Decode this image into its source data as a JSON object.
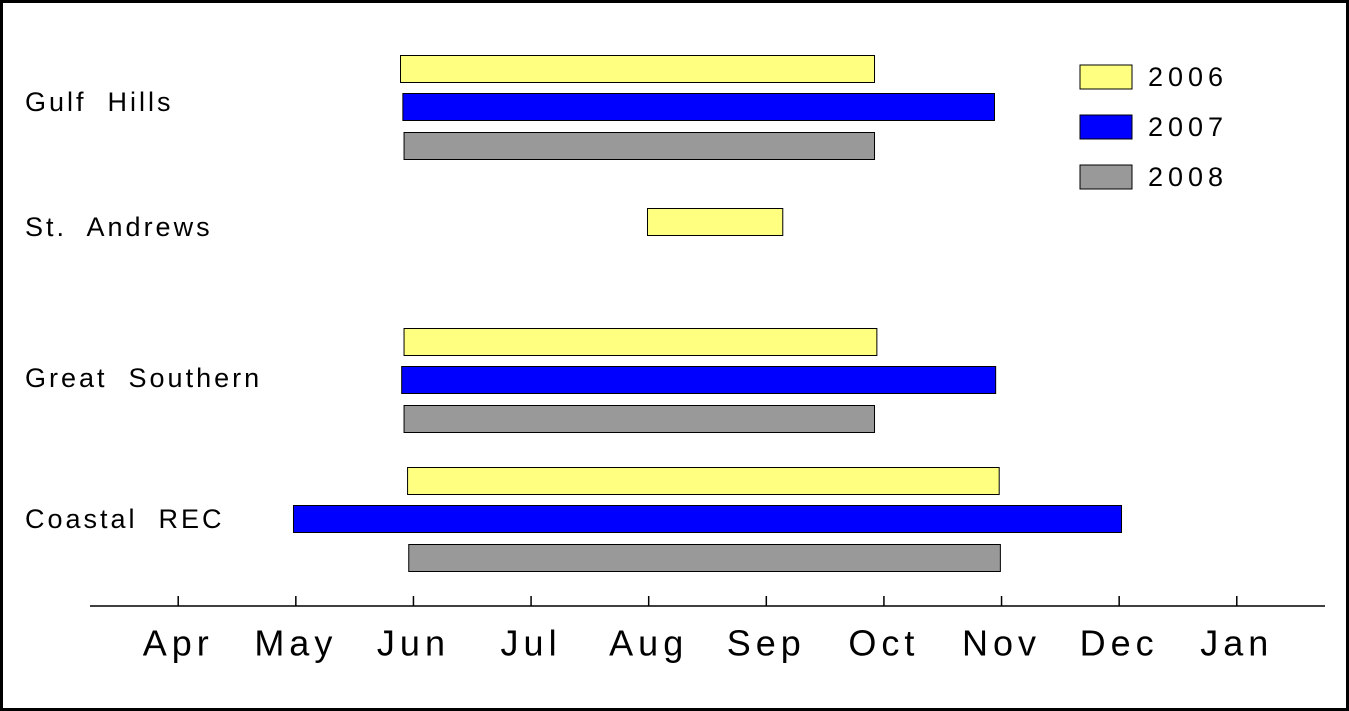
{
  "chart_data": {
    "type": "floating-bar",
    "categories": [
      "Gulf  Hills",
      "St.  Andrews",
      "Great  Southern",
      "Coastal  REC"
    ],
    "series": [
      {
        "name": "2006",
        "color": "#ffff80",
        "values": [
          [
            5.89,
            9.92
          ],
          [
            7.99,
            9.14
          ],
          [
            5.92,
            9.94
          ],
          [
            5.95,
            10.98
          ]
        ]
      },
      {
        "name": "2007",
        "color": "#0000ff",
        "values": [
          [
            5.91,
            10.94
          ],
          null,
          [
            5.9,
            10.95
          ],
          [
            4.98,
            12.02
          ]
        ]
      },
      {
        "name": "2008",
        "color": "#999999",
        "values": [
          [
            5.92,
            9.92
          ],
          null,
          [
            5.92,
            9.92
          ],
          [
            5.96,
            10.99
          ]
        ]
      }
    ],
    "xlim": [
      3.25,
      13.75
    ],
    "xticks": [
      {
        "value": 4,
        "label": "Apr"
      },
      {
        "value": 5,
        "label": "May"
      },
      {
        "value": 6,
        "label": "Jun"
      },
      {
        "value": 7,
        "label": "Jul"
      },
      {
        "value": 8,
        "label": "Aug"
      },
      {
        "value": 9,
        "label": "Sep"
      },
      {
        "value": 10,
        "label": "Oct"
      },
      {
        "value": 11,
        "label": "Nov"
      },
      {
        "value": 12,
        "label": "Dec"
      },
      {
        "value": 13,
        "label": "Jan"
      }
    ],
    "legend": "top-right"
  }
}
